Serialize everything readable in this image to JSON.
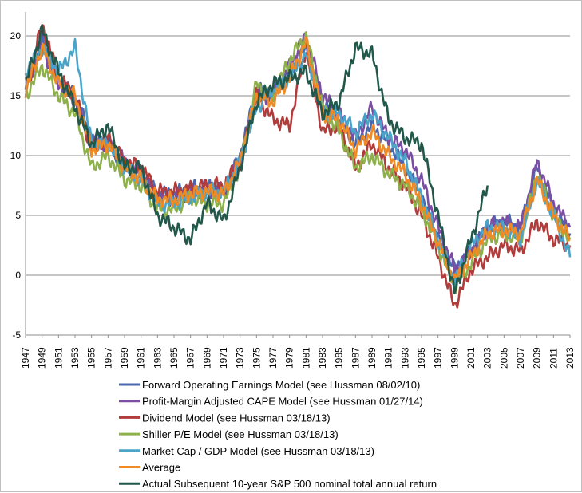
{
  "chart_data": {
    "type": "line",
    "title": "",
    "xlabel": "",
    "ylabel": "",
    "xlim": [
      1947,
      2013
    ],
    "ylim": [
      -5,
      22
    ],
    "yticks": [
      -5,
      0,
      5,
      10,
      15,
      20
    ],
    "xticks": [
      "1947",
      "1949",
      "1951",
      "1953",
      "1955",
      "1957",
      "1959",
      "1961",
      "1963",
      "1965",
      "1967",
      "1969",
      "1971",
      "1973",
      "1975",
      "1977",
      "1979",
      "1981",
      "1983",
      "1985",
      "1987",
      "1989",
      "1991",
      "1993",
      "1995",
      "1997",
      "1999",
      "2001",
      "2003",
      "2005",
      "2007",
      "2009",
      "2011",
      "2013"
    ],
    "grid": "horizontal",
    "legend": "bottom",
    "series": [
      {
        "name": "Forward Operating Earnings Model (see Hussman 08/02/10)",
        "color": "#4a67b0",
        "x": [
          1947,
          1949,
          1951,
          1953,
          1955,
          1957,
          1959,
          1961,
          1963,
          1965,
          1967,
          1969,
          1971,
          1973,
          1975,
          1977,
          1979,
          1981,
          1983,
          1985,
          1987,
          1989,
          1991,
          1993,
          1995,
          1997,
          1999,
          2001,
          2003,
          2005,
          2007,
          2009,
          2011,
          2013
        ],
        "y": [
          15.5,
          19.5,
          16.5,
          15.0,
          11.5,
          11.0,
          9.0,
          8.5,
          6.8,
          6.8,
          7.2,
          7.5,
          7.0,
          10.0,
          15.5,
          15.0,
          17.0,
          19.0,
          14.5,
          13.0,
          11.0,
          12.5,
          11.0,
          9.0,
          6.5,
          3.0,
          0.5,
          2.0,
          4.0,
          4.5,
          4.0,
          9.0,
          5.5,
          3.5
        ]
      },
      {
        "name": "Profit-Margin Adjusted CAPE Model (see Hussman 01/27/14)",
        "color": "#7a4fa3",
        "x": [
          1947,
          1949,
          1951,
          1953,
          1955,
          1957,
          1959,
          1961,
          1963,
          1965,
          1967,
          1969,
          1971,
          1973,
          1975,
          1977,
          1979,
          1981,
          1983,
          1985,
          1987,
          1989,
          1991,
          1993,
          1995,
          1997,
          1999,
          2001,
          2003,
          2005,
          2007,
          2009,
          2011,
          2013
        ],
        "y": [
          16.0,
          19.0,
          16.0,
          14.5,
          11.0,
          11.0,
          9.5,
          8.5,
          6.5,
          6.5,
          7.0,
          7.0,
          7.0,
          9.5,
          15.0,
          15.0,
          17.5,
          20.0,
          15.0,
          13.5,
          11.5,
          14.0,
          11.5,
          10.5,
          8.0,
          4.0,
          0.5,
          2.0,
          4.0,
          4.5,
          4.0,
          9.5,
          6.0,
          4.0
        ]
      },
      {
        "name": "Dividend Model (see Hussman 03/18/13)",
        "color": "#b23b3b",
        "x": [
          1947,
          1949,
          1951,
          1953,
          1955,
          1957,
          1959,
          1961,
          1963,
          1965,
          1967,
          1969,
          1971,
          1973,
          1975,
          1977,
          1979,
          1981,
          1983,
          1985,
          1987,
          1989,
          1991,
          1993,
          1995,
          1997,
          1999,
          2001,
          2003,
          2005,
          2007,
          2009,
          2011,
          2013
        ],
        "y": [
          15.0,
          21.0,
          16.5,
          15.0,
          10.5,
          11.5,
          9.5,
          9.0,
          7.0,
          7.0,
          7.2,
          7.5,
          7.5,
          9.5,
          15.0,
          13.0,
          12.5,
          19.0,
          12.0,
          12.5,
          9.0,
          11.0,
          9.0,
          7.5,
          5.0,
          1.5,
          -2.5,
          0.5,
          1.5,
          2.5,
          2.0,
          4.5,
          3.0,
          2.5
        ]
      },
      {
        "name": "Shiller P/E Model (see Hussman 03/18/13)",
        "color": "#8db04a",
        "x": [
          1947,
          1949,
          1951,
          1953,
          1955,
          1957,
          1959,
          1961,
          1963,
          1965,
          1967,
          1969,
          1971,
          1973,
          1975,
          1977,
          1979,
          1981,
          1983,
          1985,
          1987,
          1989,
          1991,
          1993,
          1995,
          1997,
          1999,
          2001,
          2003,
          2005,
          2007,
          2009,
          2011,
          2013
        ],
        "y": [
          15.0,
          17.5,
          15.0,
          13.5,
          9.0,
          10.0,
          8.0,
          7.5,
          5.5,
          5.5,
          6.5,
          6.0,
          6.0,
          9.0,
          16.0,
          15.0,
          18.0,
          20.0,
          14.0,
          12.0,
          9.0,
          10.0,
          8.5,
          7.5,
          5.5,
          2.5,
          -1.0,
          1.0,
          3.0,
          3.5,
          3.0,
          8.5,
          5.0,
          3.0
        ]
      },
      {
        "name": "Market Cap / GDP Model (see Hussman 03/18/13)",
        "color": "#4aa3c8",
        "x": [
          1947,
          1949,
          1951,
          1953,
          1955,
          1957,
          1959,
          1961,
          1963,
          1965,
          1967,
          1969,
          1971,
          1973,
          1975,
          1977,
          1979,
          1981,
          1983,
          1985,
          1987,
          1989,
          1991,
          1993,
          1995,
          1997,
          1999,
          2001,
          2003,
          2005,
          2007,
          2009,
          2011,
          2013
        ],
        "y": [
          17.0,
          19.0,
          17.0,
          19.0,
          11.0,
          11.0,
          9.0,
          8.0,
          6.0,
          6.0,
          6.5,
          7.0,
          7.0,
          9.5,
          14.0,
          15.5,
          16.5,
          18.5,
          13.5,
          13.5,
          12.0,
          13.5,
          11.5,
          9.5,
          6.5,
          3.0,
          -0.5,
          2.5,
          4.0,
          4.0,
          3.0,
          8.0,
          5.0,
          1.5
        ]
      },
      {
        "name": "Average",
        "color": "#f08a24",
        "x": [
          1947,
          1949,
          1951,
          1953,
          1955,
          1957,
          1959,
          1961,
          1963,
          1965,
          1967,
          1969,
          1971,
          1973,
          1975,
          1977,
          1979,
          1981,
          1983,
          1985,
          1987,
          1989,
          1991,
          1993,
          1995,
          1997,
          1999,
          2001,
          2003,
          2005,
          2007,
          2009,
          2011,
          2013
        ],
        "y": [
          15.5,
          19.0,
          16.0,
          15.0,
          10.5,
          11.0,
          9.0,
          8.0,
          6.3,
          6.3,
          6.8,
          7.0,
          6.8,
          9.5,
          15.0,
          14.5,
          16.5,
          19.5,
          13.5,
          13.0,
          10.5,
          12.0,
          10.0,
          8.5,
          6.0,
          2.8,
          -0.5,
          1.5,
          3.5,
          3.8,
          3.5,
          8.0,
          5.0,
          3.0
        ]
      },
      {
        "name": "Actual Subsequent 10-year S&P 500 nominal total annual return",
        "color": "#22584a",
        "x": [
          1947,
          1949,
          1951,
          1953,
          1955,
          1957,
          1959,
          1961,
          1963,
          1965,
          1967,
          1969,
          1971,
          1973,
          1975,
          1977,
          1979,
          1981,
          1983,
          1985,
          1987,
          1989,
          1991,
          1993,
          1995,
          1997,
          1999,
          2001,
          2003
        ],
        "y": [
          16.0,
          20.5,
          17.0,
          14.0,
          11.0,
          12.5,
          9.0,
          9.0,
          5.0,
          4.0,
          3.0,
          6.0,
          4.5,
          9.0,
          14.5,
          16.0,
          16.5,
          17.0,
          13.5,
          14.5,
          19.0,
          18.5,
          13.0,
          11.5,
          11.0,
          5.0,
          -1.5,
          3.0,
          7.5
        ]
      }
    ]
  }
}
